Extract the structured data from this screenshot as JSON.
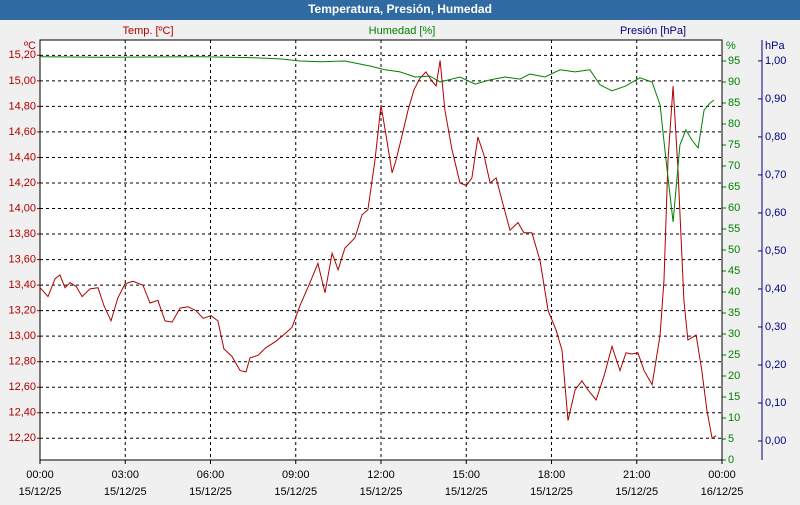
{
  "chart_data": {
    "type": "line",
    "title": "Temperatura, Presión, Humedad",
    "y_label": "Temp. [ºC]",
    "y2_label": "Humedad [%]",
    "y3_label": "Presión [hPa]",
    "y_unit": "ºC",
    "y2_unit": "%",
    "y3_unit": "hPa",
    "y3_color": "#000080",
    "grid": true,
    "xlim": [
      0,
      24
    ],
    "xticks": [
      {
        "value": 0,
        "label": "00:00",
        "date": "15/12/25"
      },
      {
        "value": 3,
        "label": "03:00",
        "date": "15/12/25"
      },
      {
        "value": 6,
        "label": "06:00",
        "date": "15/12/25"
      },
      {
        "value": 9,
        "label": "09:00",
        "date": "15/12/25"
      },
      {
        "value": 12,
        "label": "12:00",
        "date": "15/12/25"
      },
      {
        "value": 15,
        "label": "15:00",
        "date": "15/12/25"
      },
      {
        "value": 18,
        "label": "18:00",
        "date": "15/12/25"
      },
      {
        "value": 21,
        "label": "21:00",
        "date": "15/12/25"
      },
      {
        "value": 24,
        "label": "00:00",
        "date": "16/12/25"
      }
    ],
    "ylim": [
      12.03,
      15.32
    ],
    "yticks": [
      {
        "value": 12.2,
        "label": "12,20"
      },
      {
        "value": 12.4,
        "label": "12,40"
      },
      {
        "value": 12.6,
        "label": "12,60"
      },
      {
        "value": 12.8,
        "label": "12,80"
      },
      {
        "value": 13.0,
        "label": "13,00"
      },
      {
        "value": 13.2,
        "label": "13,20"
      },
      {
        "value": 13.4,
        "label": "13,40"
      },
      {
        "value": 13.6,
        "label": "13,60"
      },
      {
        "value": 13.8,
        "label": "13,80"
      },
      {
        "value": 14.0,
        "label": "14,00"
      },
      {
        "value": 14.2,
        "label": "14,20"
      },
      {
        "value": 14.4,
        "label": "14,40"
      },
      {
        "value": 14.6,
        "label": "14,60"
      },
      {
        "value": 14.8,
        "label": "14,80"
      },
      {
        "value": 15.0,
        "label": "15,00"
      },
      {
        "value": 15.2,
        "label": "15,20"
      }
    ],
    "y2lim": [
      0,
      100
    ],
    "y2ticks": [
      0,
      5,
      10,
      15,
      20,
      25,
      30,
      35,
      40,
      45,
      50,
      55,
      60,
      65,
      70,
      75,
      80,
      85,
      90,
      95
    ],
    "y3lim": [
      -0.05,
      1.055
    ],
    "y3ticks": [
      {
        "value": 0,
        "label": "0,00"
      },
      {
        "value": 0.1,
        "label": "0,10"
      },
      {
        "value": 0.2,
        "label": "0,20"
      },
      {
        "value": 0.3,
        "label": "0,30"
      },
      {
        "value": 0.4,
        "label": "0,40"
      },
      {
        "value": 0.5,
        "label": "0,50"
      },
      {
        "value": 0.6,
        "label": "0,60"
      },
      {
        "value": 0.7,
        "label": "0,70"
      },
      {
        "value": 0.8,
        "label": "0,80"
      },
      {
        "value": 0.9,
        "label": "0,90"
      },
      {
        "value": 1.0,
        "label": "1,00"
      }
    ],
    "series": [
      {
        "name": "Temp. [ºC]",
        "color": "#b00000",
        "x": [
          0,
          0.28,
          0.53,
          0.7,
          0.88,
          1.06,
          1.27,
          1.48,
          1.76,
          2.04,
          2.25,
          2.5,
          2.74,
          2.99,
          3.27,
          3.62,
          3.87,
          4.15,
          4.4,
          4.65,
          4.93,
          5.21,
          5.49,
          5.74,
          6.02,
          6.26,
          6.47,
          6.76,
          7.04,
          7.25,
          7.39,
          7.67,
          7.95,
          8.3,
          8.62,
          8.87,
          9.15,
          9.5,
          9.78,
          10.03,
          10.28,
          10.49,
          10.73,
          11.08,
          11.33,
          11.54,
          11.79,
          12.0,
          12.18,
          12.39,
          12.53,
          12.74,
          12.95,
          13.16,
          13.37,
          13.58,
          13.79,
          13.94,
          14.08,
          14.25,
          14.5,
          14.78,
          15.0,
          15.2,
          15.41,
          15.62,
          15.84,
          16.05,
          16.26,
          16.54,
          16.82,
          17.03,
          17.31,
          17.6,
          17.88,
          18.16,
          18.37,
          18.58,
          18.83,
          19.07,
          19.28,
          19.57,
          19.85,
          20.13,
          20.41,
          20.62,
          20.83,
          21.04,
          21.26,
          21.54,
          21.82,
          21.96,
          22.1,
          22.28,
          22.45,
          22.66,
          22.8,
          23.09,
          23.29,
          23.47,
          23.65,
          23.79
        ],
        "values": [
          13.38,
          13.31,
          13.45,
          13.48,
          13.38,
          13.42,
          13.39,
          13.31,
          13.37,
          13.38,
          13.24,
          13.12,
          13.3,
          13.41,
          13.43,
          13.4,
          13.26,
          13.28,
          13.12,
          13.11,
          13.22,
          13.23,
          13.2,
          13.14,
          13.16,
          13.12,
          12.9,
          12.84,
          12.73,
          12.72,
          12.83,
          12.85,
          12.91,
          12.96,
          13.02,
          13.07,
          13.24,
          13.42,
          13.57,
          13.34,
          13.65,
          13.52,
          13.69,
          13.77,
          13.95,
          13.99,
          14.38,
          14.81,
          14.57,
          14.28,
          14.38,
          14.57,
          14.77,
          14.93,
          15.02,
          15.07,
          15.0,
          14.96,
          15.16,
          14.77,
          14.46,
          14.2,
          14.18,
          14.24,
          14.56,
          14.42,
          14.2,
          14.24,
          14.06,
          13.83,
          13.89,
          13.81,
          13.81,
          13.59,
          13.2,
          13.05,
          12.89,
          12.34,
          12.58,
          12.65,
          12.58,
          12.5,
          12.69,
          12.92,
          12.73,
          12.87,
          12.86,
          12.87,
          12.73,
          12.62,
          13.01,
          13.44,
          14.38,
          14.96,
          14.3,
          13.28,
          12.97,
          13.01,
          12.73,
          12.42,
          12.2,
          12.22
        ]
      },
      {
        "name": "Humedad [%]",
        "color": "#008000",
        "axis": "y2",
        "x": [
          0,
          2.11,
          5.63,
          7.39,
          8.45,
          9.15,
          9.85,
          10.73,
          11.61,
          12.14,
          12.67,
          13.2,
          13.72,
          14.08,
          14.78,
          15.31,
          15.84,
          16.36,
          16.89,
          17.24,
          17.77,
          18.3,
          18.83,
          19.35,
          19.71,
          20.13,
          20.59,
          21.11,
          21.54,
          21.82,
          22.03,
          22.28,
          22.52,
          22.73,
          22.94,
          23.16,
          23.37,
          23.58,
          23.72
        ],
        "values": [
          96,
          95.9,
          96,
          95.8,
          95.5,
          95,
          94.8,
          95,
          93.8,
          92.9,
          92.4,
          91.2,
          91.4,
          90,
          91.2,
          89.5,
          90.5,
          91.2,
          90.7,
          91.9,
          91.2,
          92.9,
          92.4,
          92.9,
          89.3,
          87.9,
          89,
          91,
          90,
          84.5,
          71.4,
          56.7,
          75,
          78.6,
          76.2,
          74.3,
          83.3,
          85,
          85.7
        ]
      }
    ]
  }
}
